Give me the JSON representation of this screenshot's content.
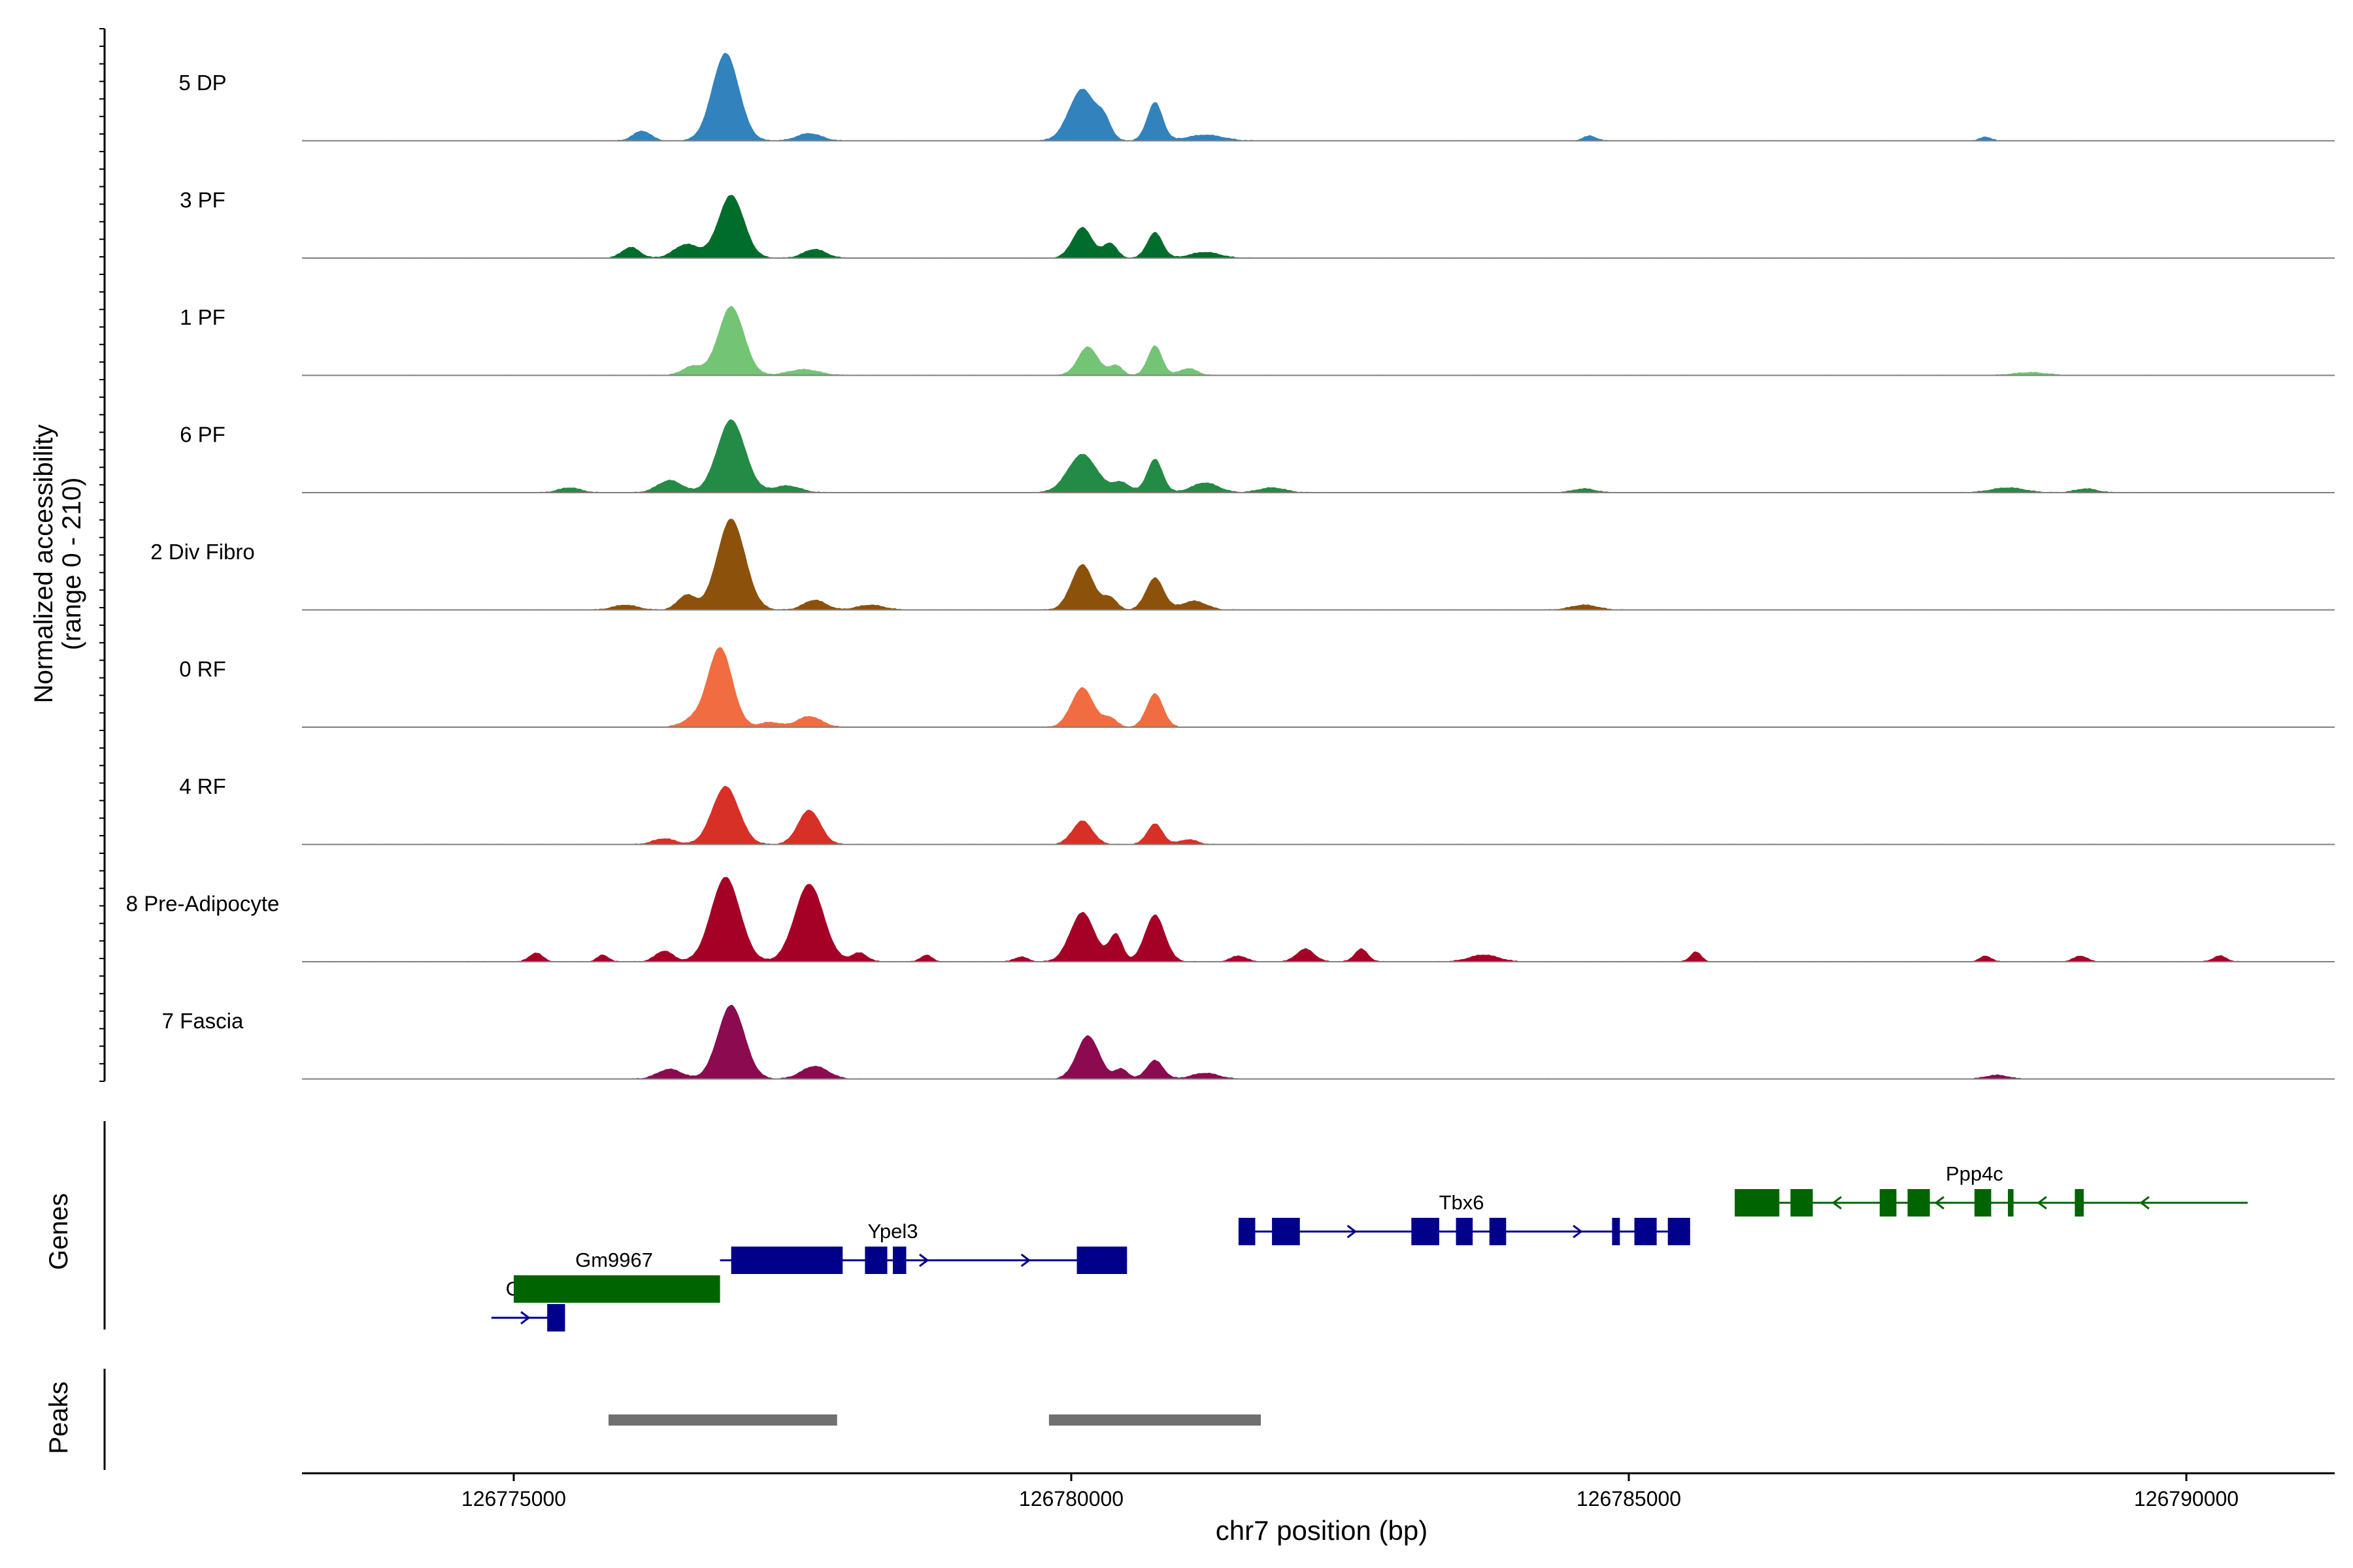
{
  "chart_data": {
    "type": "area",
    "title": "",
    "xlabel": "chr7 position (bp)",
    "ylabel": "Normalized accessibility",
    "ylabel_range": "(range 0 - 210)",
    "xlim": [
      126773800,
      126791500
    ],
    "ylim": [
      0,
      210
    ],
    "x_ticks": [
      126775000,
      126780000,
      126785000,
      126790000
    ],
    "x_tick_labels": [
      "126775000",
      "126780000",
      "126785000",
      "126790000"
    ],
    "track_labels": {
      "genes": "Genes",
      "peaks": "Peaks"
    },
    "series": [
      {
        "name": "5 DP",
        "color": "#3182bd",
        "peaks": [
          {
            "x": 126776150,
            "y": 20,
            "w": 80
          },
          {
            "x": 126776900,
            "y": 178,
            "w": 120
          },
          {
            "x": 126777650,
            "y": 15,
            "w": 110
          },
          {
            "x": 126780100,
            "y": 105,
            "w": 120
          },
          {
            "x": 126780300,
            "y": 32,
            "w": 60
          },
          {
            "x": 126780750,
            "y": 78,
            "w": 70
          },
          {
            "x": 126781200,
            "y": 12,
            "w": 160
          },
          {
            "x": 126784650,
            "y": 10,
            "w": 60
          },
          {
            "x": 126788200,
            "y": 8,
            "w": 50
          }
        ]
      },
      {
        "name": "3 PF",
        "color": "#006d2c",
        "peaks": [
          {
            "x": 126776050,
            "y": 22,
            "w": 80
          },
          {
            "x": 126776550,
            "y": 28,
            "w": 110
          },
          {
            "x": 126776950,
            "y": 128,
            "w": 115
          },
          {
            "x": 126777700,
            "y": 18,
            "w": 100
          },
          {
            "x": 126780100,
            "y": 62,
            "w": 90
          },
          {
            "x": 126780350,
            "y": 30,
            "w": 60
          },
          {
            "x": 126780750,
            "y": 52,
            "w": 70
          },
          {
            "x": 126781200,
            "y": 12,
            "w": 130
          }
        ]
      },
      {
        "name": "1 PF",
        "color": "#74c476",
        "peaks": [
          {
            "x": 126776600,
            "y": 18,
            "w": 90
          },
          {
            "x": 126776950,
            "y": 140,
            "w": 115
          },
          {
            "x": 126777600,
            "y": 12,
            "w": 140
          },
          {
            "x": 126780150,
            "y": 58,
            "w": 90
          },
          {
            "x": 126780400,
            "y": 20,
            "w": 60
          },
          {
            "x": 126780750,
            "y": 60,
            "w": 65
          },
          {
            "x": 126781050,
            "y": 14,
            "w": 80
          },
          {
            "x": 126788600,
            "y": 6,
            "w": 150
          }
        ]
      },
      {
        "name": "6 PF",
        "color": "#238b45",
        "peaks": [
          {
            "x": 126775500,
            "y": 10,
            "w": 100
          },
          {
            "x": 126776400,
            "y": 25,
            "w": 110
          },
          {
            "x": 126776950,
            "y": 148,
            "w": 125
          },
          {
            "x": 126777450,
            "y": 14,
            "w": 120
          },
          {
            "x": 126780100,
            "y": 78,
            "w": 130
          },
          {
            "x": 126780450,
            "y": 20,
            "w": 80
          },
          {
            "x": 126780750,
            "y": 68,
            "w": 70
          },
          {
            "x": 126781200,
            "y": 20,
            "w": 120
          },
          {
            "x": 126781800,
            "y": 10,
            "w": 120
          },
          {
            "x": 126784600,
            "y": 8,
            "w": 100
          },
          {
            "x": 126788400,
            "y": 10,
            "w": 150
          },
          {
            "x": 126789100,
            "y": 8,
            "w": 100
          }
        ]
      },
      {
        "name": "2 Div Fibro",
        "color": "#8c510a",
        "peaks": [
          {
            "x": 126776000,
            "y": 10,
            "w": 110
          },
          {
            "x": 126776550,
            "y": 30,
            "w": 80
          },
          {
            "x": 126776950,
            "y": 185,
            "w": 125
          },
          {
            "x": 126777700,
            "y": 20,
            "w": 100
          },
          {
            "x": 126778200,
            "y": 10,
            "w": 120
          },
          {
            "x": 126780100,
            "y": 92,
            "w": 100
          },
          {
            "x": 126780350,
            "y": 24,
            "w": 60
          },
          {
            "x": 126780750,
            "y": 65,
            "w": 80
          },
          {
            "x": 126781100,
            "y": 18,
            "w": 110
          },
          {
            "x": 126784600,
            "y": 10,
            "w": 120
          }
        ]
      },
      {
        "name": "0 RF",
        "color": "#f16d41",
        "peaks": [
          {
            "x": 126776600,
            "y": 14,
            "w": 100
          },
          {
            "x": 126776850,
            "y": 162,
            "w": 110
          },
          {
            "x": 126777300,
            "y": 10,
            "w": 90
          },
          {
            "x": 126777650,
            "y": 22,
            "w": 110
          },
          {
            "x": 126780100,
            "y": 80,
            "w": 100
          },
          {
            "x": 126780350,
            "y": 18,
            "w": 60
          },
          {
            "x": 126780750,
            "y": 68,
            "w": 75
          }
        ]
      },
      {
        "name": "4 RF",
        "color": "#d73027",
        "peaks": [
          {
            "x": 126776350,
            "y": 12,
            "w": 100
          },
          {
            "x": 126776900,
            "y": 118,
            "w": 120
          },
          {
            "x": 126777650,
            "y": 70,
            "w": 100
          },
          {
            "x": 126780100,
            "y": 48,
            "w": 90
          },
          {
            "x": 126780750,
            "y": 42,
            "w": 70
          },
          {
            "x": 126781050,
            "y": 10,
            "w": 80
          }
        ]
      },
      {
        "name": "8 Pre-Adipocyte",
        "color": "#a50026",
        "peaks": [
          {
            "x": 126775200,
            "y": 18,
            "w": 60
          },
          {
            "x": 126775800,
            "y": 14,
            "w": 50
          },
          {
            "x": 126776350,
            "y": 22,
            "w": 80
          },
          {
            "x": 126776900,
            "y": 172,
            "w": 130
          },
          {
            "x": 126777650,
            "y": 158,
            "w": 130
          },
          {
            "x": 126778100,
            "y": 18,
            "w": 70
          },
          {
            "x": 126778700,
            "y": 14,
            "w": 50
          },
          {
            "x": 126779550,
            "y": 10,
            "w": 60
          },
          {
            "x": 126780100,
            "y": 100,
            "w": 110
          },
          {
            "x": 126780400,
            "y": 55,
            "w": 60
          },
          {
            "x": 126780750,
            "y": 95,
            "w": 90
          },
          {
            "x": 126781500,
            "y": 12,
            "w": 70
          },
          {
            "x": 126782100,
            "y": 26,
            "w": 80
          },
          {
            "x": 126782600,
            "y": 26,
            "w": 60
          },
          {
            "x": 126783700,
            "y": 14,
            "w": 130
          },
          {
            "x": 126785600,
            "y": 20,
            "w": 50
          },
          {
            "x": 126788200,
            "y": 12,
            "w": 50
          },
          {
            "x": 126789050,
            "y": 12,
            "w": 60
          },
          {
            "x": 126790300,
            "y": 12,
            "w": 60
          }
        ]
      },
      {
        "name": "7 Fascia",
        "color": "#8b0a50",
        "peaks": [
          {
            "x": 126776400,
            "y": 20,
            "w": 110
          },
          {
            "x": 126776950,
            "y": 150,
            "w": 120
          },
          {
            "x": 126777700,
            "y": 26,
            "w": 120
          },
          {
            "x": 126780150,
            "y": 88,
            "w": 100
          },
          {
            "x": 126780450,
            "y": 20,
            "w": 60
          },
          {
            "x": 126780750,
            "y": 38,
            "w": 75
          },
          {
            "x": 126781200,
            "y": 12,
            "w": 120
          },
          {
            "x": 126788300,
            "y": 8,
            "w": 100
          }
        ]
      }
    ],
    "genes": [
      {
        "name": "Gdpd3",
        "strand": "+",
        "color": "#00008b",
        "row": 3,
        "start": 126774800,
        "end": 126775400,
        "exons": [
          [
            126775300,
            126775460
          ]
        ]
      },
      {
        "name": "Gm9967",
        "strand": "-",
        "color": "#006400",
        "row": 2,
        "start": 126775000,
        "end": 126776850,
        "exons": [
          [
            126775000,
            126776850
          ]
        ]
      },
      {
        "name": "Ypel3",
        "strand": "+",
        "color": "#00008b",
        "row": 1,
        "start": 126776850,
        "end": 126780500,
        "exons": [
          [
            126776950,
            126777950
          ],
          [
            126778150,
            126778350
          ],
          [
            126778400,
            126778520
          ],
          [
            126780050,
            126780500
          ]
        ]
      },
      {
        "name": "Tbx6",
        "strand": "+",
        "color": "#00008b",
        "row": 0,
        "start": 126781500,
        "end": 126785550,
        "exons": [
          [
            126781500,
            126781650
          ],
          [
            126781800,
            126782050
          ],
          [
            126783050,
            126783300
          ],
          [
            126783450,
            126783600
          ],
          [
            126783750,
            126783900
          ],
          [
            126784850,
            126784920
          ],
          [
            126785050,
            126785250
          ],
          [
            126785350,
            126785550
          ]
        ]
      },
      {
        "name": "Ppp4c",
        "strand": "-",
        "color": "#006400",
        "row": -1,
        "start": 126785950,
        "end": 126790550,
        "exons": [
          [
            126785950,
            126786350
          ],
          [
            126786450,
            126786650
          ],
          [
            126787250,
            126787400
          ],
          [
            126787500,
            126787700
          ],
          [
            126788100,
            126788250
          ],
          [
            126788400,
            126788450
          ],
          [
            126789000,
            126789080
          ]
        ]
      }
    ],
    "peaks": [
      [
        126775850,
        126777900
      ],
      [
        126779800,
        126781700
      ]
    ]
  }
}
